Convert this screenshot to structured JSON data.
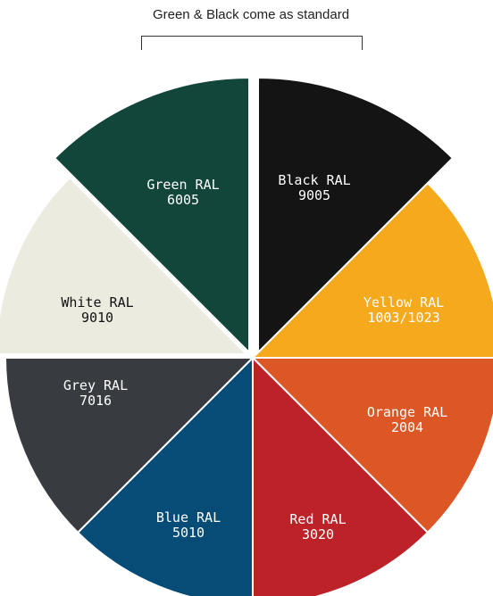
{
  "header": {
    "note": "Green & Black come as standard"
  },
  "segments": [
    {
      "name": "Green RAL",
      "code": "6005",
      "color": "#12463a",
      "text_color": "#ffffff"
    },
    {
      "name": "Black RAL",
      "code": "9005",
      "color": "#141414",
      "text_color": "#ffffff"
    },
    {
      "name": "Yellow RAL",
      "code": "1003/1023",
      "color": "#f5a91d",
      "text_color": "#ffffff"
    },
    {
      "name": "Orange RAL",
      "code": "2004",
      "color": "#dd5626",
      "text_color": "#ffffff"
    },
    {
      "name": "Red RAL",
      "code": "3020",
      "color": "#be2229",
      "text_color": "#ffffff"
    },
    {
      "name": "Blue RAL",
      "code": "5010",
      "color": "#064c77",
      "text_color": "#ffffff"
    },
    {
      "name": "Grey RAL",
      "code": "7016",
      "color": "#383c41",
      "text_color": "#ffffff"
    },
    {
      "name": "White RAL",
      "code": "9010",
      "color": "#ecebdf",
      "text_color": "#111111"
    }
  ]
}
